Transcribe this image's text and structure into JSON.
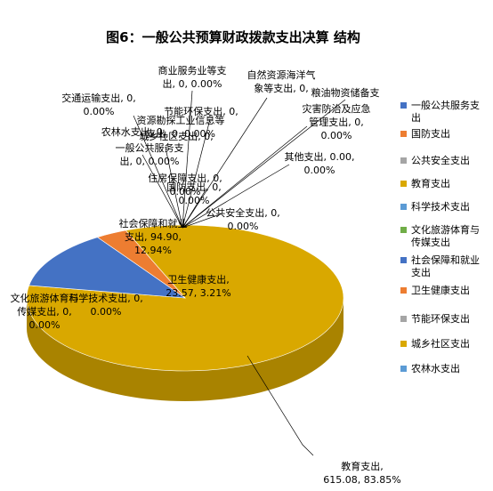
{
  "chart_data": {
    "type": "pie",
    "title": "图6：一般公共预算财政拨款支出决算 结构",
    "legend_position": "right",
    "slices": [
      {
        "name": "一般公共服务支出",
        "value": 0,
        "percent": "0.00%",
        "color": "#4472C4"
      },
      {
        "name": "国防支出",
        "value": 0,
        "percent": "0.00%",
        "color": "#ED7D31"
      },
      {
        "name": "公共安全支出",
        "value": 0,
        "percent": "0.00%",
        "color": "#A5A5A5"
      },
      {
        "name": "教育支出",
        "value": 615.08,
        "percent": "83.85%",
        "color": "#D9A800"
      },
      {
        "name": "科学技术支出",
        "value": 0,
        "percent": "0.00%",
        "color": "#5B9BD5"
      },
      {
        "name": "文化旅游体育与传媒支出",
        "value": 0,
        "percent": "0.00%",
        "color": "#70AD47"
      },
      {
        "name": "社会保障和就业支出",
        "value": 94.9,
        "percent": "12.94%",
        "color": "#4472C4"
      },
      {
        "name": "卫生健康支出",
        "value": 23.57,
        "percent": "3.21%",
        "color": "#ED7D31"
      },
      {
        "name": "节能环保支出",
        "value": 0,
        "percent": "0.00%",
        "color": "#A5A5A5"
      },
      {
        "name": "城乡社区支出",
        "value": 0,
        "percent": "0.00%",
        "color": "#D9A800"
      },
      {
        "name": "农林水支出",
        "value": 0,
        "percent": "0.00%",
        "color": "#5B9BD5"
      }
    ],
    "data_labels": [
      {
        "key": "shangye",
        "lines": [
          "商业服务业等支",
          "出, 0, 0.00%"
        ]
      },
      {
        "key": "ziran",
        "lines": [
          "自然资源海洋气",
          "象等支出, 0,"
        ]
      },
      {
        "key": "liangyou",
        "lines": [
          "粮油物资储备支"
        ]
      },
      {
        "key": "zaihai",
        "lines": [
          "灾害防治及应急",
          "管理支出, 0,",
          "0.00%"
        ]
      },
      {
        "key": "jiaotong",
        "lines": [
          "交通运输支出, 0,",
          "0.00%"
        ]
      },
      {
        "key": "jieneng",
        "lines": [
          "节能环保支出, 0,"
        ]
      },
      {
        "key": "ziyuan",
        "lines": [
          "资源勘探工业信息等",
          "支出, 0, 0.00%"
        ]
      },
      {
        "key": "nonglin",
        "lines": [
          "农林水支出, 0,"
        ]
      },
      {
        "key": "chengxiang",
        "lines": [
          "城乡社区支出, 0,"
        ]
      },
      {
        "key": "yiban",
        "lines": [
          "一般公共服务支",
          "出, 0, 0.00%"
        ]
      },
      {
        "key": "qita",
        "lines": [
          "其他支出, 0.00,",
          "0.00%"
        ]
      },
      {
        "key": "zhufang",
        "lines": [
          "住房保障支出, 0,",
          "0.00%"
        ]
      },
      {
        "key": "guofang",
        "lines": [
          "国防支出, 0,",
          "0.00%"
        ]
      },
      {
        "key": "gonggong",
        "lines": [
          "公共安全支出, 0,",
          "0.00%"
        ]
      },
      {
        "key": "shehui",
        "lines": [
          "社会保障和就业",
          "支出, 94.90,",
          "12.94%"
        ]
      },
      {
        "key": "weisheng",
        "lines": [
          "卫生健康支出,",
          "23.57, 3.21%"
        ]
      },
      {
        "key": "wenhua",
        "lines": [
          "文化旅游体育与",
          "传媒支出, 0,",
          "0.00%"
        ]
      },
      {
        "key": "keji",
        "lines": [
          "科学技术支出, 0,",
          "0.00%"
        ]
      },
      {
        "key": "jiaoyu",
        "lines": [
          "教育支出,",
          "615.08, 83.85%"
        ]
      }
    ]
  }
}
